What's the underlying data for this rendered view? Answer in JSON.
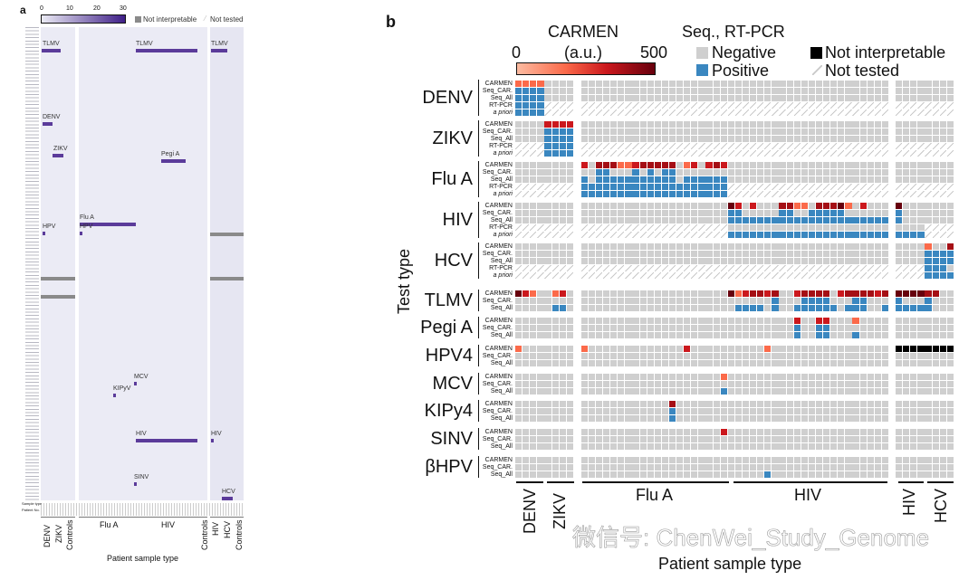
{
  "chart_data": [
    {
      "panel": "a",
      "type": "heatmap",
      "colorbar": {
        "ticks": [
          "0",
          "10",
          "20",
          "30"
        ],
        "range": [
          0,
          30
        ],
        "colors": [
          "#ebebf5",
          "#3f1f88"
        ]
      },
      "legend": {
        "not_interpretable": "Not interpretable",
        "not_tested": "Not tested"
      },
      "row_axis_labels": {
        "sample_type": "Sample type",
        "patient_no": "Patient No."
      },
      "annotations": [
        "TLMV",
        "TLMV",
        "TLMV",
        "DENV",
        "ZIKV",
        "Pegi A",
        "Flu A",
        "HPV",
        "HPV",
        "MCV",
        "KIPyV",
        "HIV",
        "HIV",
        "SINV",
        "HCV"
      ],
      "groups": [
        "DENV",
        "ZIKV",
        "Controls",
        "Flu A",
        "HIV",
        "Controls",
        "HIV",
        "HCV",
        "Controls"
      ],
      "xlabel": "Patient sample type"
    },
    {
      "panel": "b",
      "type": "heatmap",
      "legend": {
        "carmen_title": "CARMEN",
        "carmen_unit": "(a.u.)",
        "carmen_min": "0",
        "carmen_max": "500",
        "seq_title": "Seq., RT-PCR",
        "negative": "Negative",
        "positive": "Positive",
        "not_interpretable": "Not interpretable",
        "not_tested": "Not tested"
      },
      "colors": {
        "negative": "#cfcfcf",
        "positive": "#3a87c0",
        "not_interpretable": "#000000",
        "carmen_levels": [
          "#fcae91",
          "#fb6a4a",
          "#cb181d",
          "#a50f15",
          "#67000d"
        ]
      },
      "cell_codes": {
        ".": "negative",
        "B": "positive",
        "/": "not tested",
        "K": "not interpretable",
        "1-5": "CARMEN signal level (low to high, 0-500 a.u.)"
      },
      "ylabel": "Test type",
      "xlabel": "Patient sample type",
      "column_groups": [
        {
          "label": "DENV",
          "columns": 4
        },
        {
          "label": "ZIKV",
          "columns": 4
        },
        {
          "label": "Flu A",
          "columns": 20
        },
        {
          "label": "HIV",
          "columns": 22
        },
        {
          "label": "HIV",
          "columns": 4
        },
        {
          "label": "HCV",
          "columns": 4
        }
      ],
      "blocks": [
        {
          "label": "DENV",
          "rows": [
            {
              "label": "CARMEN",
              "cells": "2222.... .......... .......... .......... .......... .. ........"
            },
            {
              "label": "Seq_CAR.",
              "cells": "BBBB.... .......... .......... .......... .......... .. ........"
            },
            {
              "label": "Seq_All",
              "cells": "BBBB.... .......... .......... .......... .......... .. ........"
            },
            {
              "label": "RT-PCR",
              "cells": "BBBB//// ////////// ////////// ////////// ////////// // ////////"
            },
            {
              "label": "a priori",
              "italic": true,
              "cells": "BBBB//// ////////// ////////// ////////// ////////// // ////////"
            }
          ]
        },
        {
          "label": "ZIKV",
          "rows": [
            {
              "label": "CARMEN",
              "cells": "....3333 .......... .......... .......... .......... .. ........"
            },
            {
              "label": "Seq_CAR.",
              "cells": "....BBBB .......... .......... .......... .......... .. ........"
            },
            {
              "label": "Seq_All",
              "cells": "....BBBB .......... .......... .......... .......... .. ........"
            },
            {
              "label": "RT-PCR",
              "cells": "////BBBB ////////// ////////// ////////// ////////// // ////////"
            },
            {
              "label": "a priori",
              "italic": true,
              "cells": "////BBBB ////////// ////////// ////////// ////////// // ////////"
            }
          ]
        },
        {
          "label": "Flu A",
          "rows": [
            {
              "label": "CARMEN",
              "cells": "........ 3.44422344 444.23.343 .......... .......... .. ........"
            },
            {
              "label": "Seq_CAR.",
              "cells": "........ ..BB...B.B .BB....... .......... .......... .. ........"
            },
            {
              "label": "Seq_All",
              "cells": "........ B.BBBBBBBB BBB.BBBBBB .......... .......... .. ........"
            },
            {
              "label": "RT-PCR",
              "cells": "//////// BBBBBBBBBB BBBBBBBBBB ////////// ////////// // ////////"
            },
            {
              "label": "a priori",
              "italic": true,
              "cells": "//////// BBBBBBBBBB BBBBBBBBBB ////////// ////////// // ////////"
            }
          ]
        },
        {
          "label": "HIV",
          "rows": [
            {
              "label": "CARMEN",
              "cells": "........ .......... .......... 53.3...442 2.44452.3. .. 5......."
            },
            {
              "label": "Seq_CAR.",
              "cells": "........ .......... .......... BB.....BB. .BBBBB.... .. B......."
            },
            {
              "label": "Seq_All",
              "cells": "........ .......... .......... BBBBBBBBBB BBBBBBBBBB BB B......."
            },
            {
              "label": "RT-PCR",
              "cells": "//////// ////////// ////////// .......... .......... .. ....////"
            },
            {
              "label": "a priori",
              "italic": true,
              "cells": "//////// ////////// ////////// BBBBBBBBBB BBBBBBBBBB BB BBBB////"
            }
          ]
        },
        {
          "label": "HCV",
          "rows": [
            {
              "label": "CARMEN",
              "cells": "........ .......... .......... .......... .......... .. ....2..4"
            },
            {
              "label": "Seq_CAR.",
              "cells": "........ .......... .......... .......... .......... .. ....BBBB"
            },
            {
              "label": "Seq_All",
              "cells": "........ .......... .......... .......... .......... .. ....BBBB"
            },
            {
              "label": "RT-PCR",
              "cells": "//////// ////////// ////////// ////////// ////////// // ////BBB."
            },
            {
              "label": "a priori",
              "italic": true,
              "cells": "//////// ////////// ////////// ////////// ////////// // ////BBBB"
            }
          ]
        },
        {
          "label": "TLMV",
          "rows": [
            {
              "label": "CARMEN",
              "cells": "532..23. .......... .......... 5234434..3 4444.34444 34 555544.."
            },
            {
              "label": "Seq_CAR.",
              "cells": "........ .......... .......... ......B... BBBB...BB. .. B...B..."
            },
            {
              "label": "Seq_All",
              "cells": ".....BB. .......... .......... .BBBB.B..B BBBBB.BBB. .B BBBBB..."
            }
          ]
        },
        {
          "label": "Pegi A",
          "rows": [
            {
              "label": "CARMEN",
              "cells": "........ .......... .......... .........3 ..33...2.. .. ........"
            },
            {
              "label": "Seq_CAR.",
              "cells": "........ .......... .......... .........B ..BB...... .. ........"
            },
            {
              "label": "Seq_All",
              "cells": "........ .......... .......... .........B ..BB...B.. .. ........"
            }
          ]
        },
        {
          "label": "HPV4",
          "rows": [
            {
              "label": "CARMEN",
              "cells": "2....... 2......... ....3..... .....2.... .......... .. KKKKKKKK"
            },
            {
              "label": "Seq_CAR.",
              "cells": "........ .......... .......... .......... .......... .. ........"
            },
            {
              "label": "Seq_All",
              "cells": "........ .......... .......... .......... .......... .. ........"
            }
          ]
        },
        {
          "label": "MCV",
          "rows": [
            {
              "label": "CARMEN",
              "cells": "........ .......... .........2 .......... .......... .. ........"
            },
            {
              "label": "Seq_CAR.",
              "cells": "........ .......... .......... .......... .......... .. ........"
            },
            {
              "label": "Seq_All",
              "cells": "........ .......... .........B .......... .......... .. ........"
            }
          ]
        },
        {
          "label": "KIPy4",
          "rows": [
            {
              "label": "CARMEN",
              "cells": "........ .......... ..4....... .......... .......... .. ........"
            },
            {
              "label": "Seq_CAR.",
              "cells": "........ .......... ..B....... .......... .......... .. ........"
            },
            {
              "label": "Seq_All",
              "cells": "........ .......... ..B....... .......... .......... .. ........"
            }
          ]
        },
        {
          "label": "SINV",
          "rows": [
            {
              "label": "CARMEN",
              "cells": "........ .......... .........3 .......... .......... .. ........"
            },
            {
              "label": "Seq_CAR.",
              "cells": "........ .......... .......... .......... .......... .. ........"
            },
            {
              "label": "Seq_All",
              "cells": "........ .......... .......... .......... .......... .. ........"
            }
          ]
        },
        {
          "label": "βHPV",
          "rows": [
            {
              "label": "CARMEN",
              "cells": "........ .......... .......... .......... .......... .. ........"
            },
            {
              "label": "Seq_CAR.",
              "cells": "........ .......... .......... .......... .......... .. ........"
            },
            {
              "label": "Seq_All",
              "cells": "........ .......... .......... .....B.... .......... .. ........"
            }
          ]
        }
      ]
    }
  ],
  "panel_letters": {
    "a": "a",
    "b": "b"
  },
  "watermark": "微信号: ChenWei_Study_Genome"
}
